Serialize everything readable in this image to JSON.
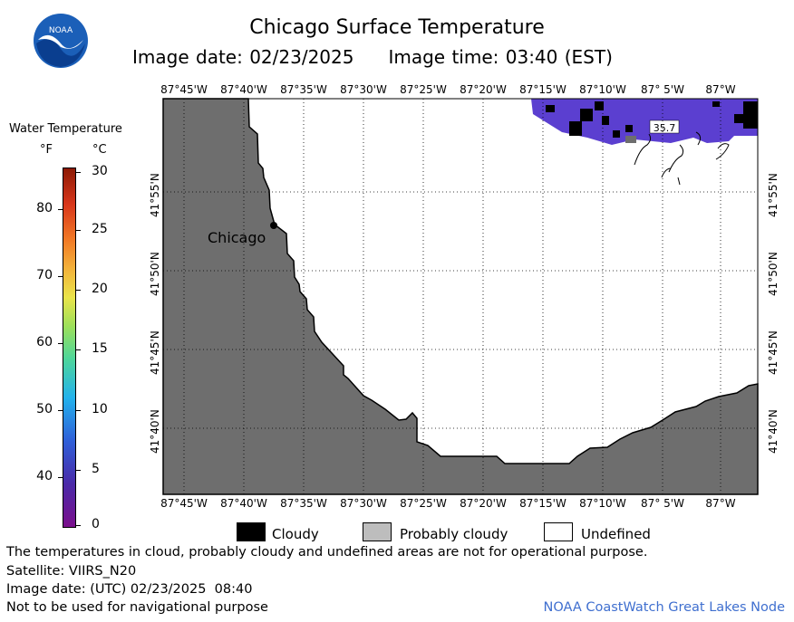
{
  "header": {
    "title": "Chicago Surface Temperature",
    "image_date": "Image date: 02/23/2025",
    "image_time": "Image time: 03:40 (EST)",
    "logo_text": "NOAA"
  },
  "legend": {
    "title": "Water Temperature",
    "unit_f": "°F",
    "unit_c": "°C",
    "f_ticks": [
      "80",
      "70",
      "60",
      "50",
      "40"
    ],
    "c_ticks": [
      "30",
      "25",
      "20",
      "15",
      "10",
      "5",
      "0"
    ]
  },
  "map": {
    "longitude_labels": [
      "87°45'W",
      "87°40'W",
      "87°35'W",
      "87°30'W",
      "87°25'W",
      "87°20'W",
      "87°15'W",
      "87°10'W",
      "87° 5'W",
      "87°W"
    ],
    "latitude_labels": [
      "41°55'N",
      "41°50'N",
      "41°45'N",
      "41°40'N"
    ],
    "city_label": "Chicago",
    "isotherm_label": "35.7",
    "colors": {
      "land": "#6e6e6e",
      "water_undefined": "#ffffff",
      "cold_water": "#5b3fd0",
      "cloudy": "#000000",
      "probably_cloudy": "#bdbdbd"
    }
  },
  "key": {
    "cloudy": "Cloudy",
    "probably_cloudy": "Probably cloudy",
    "undefined": "Undefined"
  },
  "footer": {
    "disclaimer": "The temperatures in cloud, probably cloudy and undefined areas are not for operational purpose.",
    "satellite": "Satellite: VIIRS_N20",
    "utc_date": "Image date: (UTC) 02/23/2025  08:40",
    "nav_warning": "Not to be used for navigational purpose",
    "source": "NOAA CoastWatch Great Lakes Node"
  }
}
